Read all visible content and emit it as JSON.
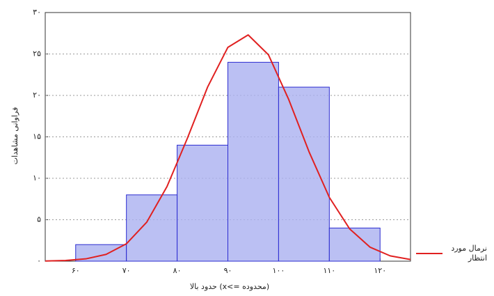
{
  "chart_data": {
    "type": "histogram",
    "x_label": "حدود بالا (x<= محدوده)",
    "y_label": "فراوانی مشاهدات",
    "bins": [
      60,
      70,
      80,
      90,
      100,
      110,
      120
    ],
    "values": [
      2,
      8,
      14,
      24,
      21,
      4
    ],
    "color": "#aab0f0",
    "edge_color": "#2b2bd0",
    "curve": {
      "name": "نرمال مورد انتظار",
      "color": "#e02020",
      "x": [
        54,
        58,
        62,
        66,
        70,
        74,
        78,
        82,
        86,
        90,
        94,
        98,
        102,
        106,
        110,
        114,
        118,
        122,
        126
      ],
      "values": [
        0.02,
        0.08,
        0.28,
        0.82,
        2.1,
        4.7,
        9.0,
        14.8,
        21.0,
        25.8,
        27.3,
        24.9,
        19.5,
        13.2,
        7.7,
        3.9,
        1.7,
        0.64,
        0.2
      ]
    },
    "xlim": [
      54,
      126
    ],
    "ylim": [
      0,
      30
    ],
    "xticks": [
      {
        "value": 60,
        "label": "۶۰"
      },
      {
        "value": 70,
        "label": "۷۰"
      },
      {
        "value": 80,
        "label": "۸۰"
      },
      {
        "value": 90,
        "label": "۹۰"
      },
      {
        "value": 100,
        "label": "۱۰۰"
      },
      {
        "value": 110,
        "label": "۱۱۰"
      },
      {
        "value": 120,
        "label": "۱۲۰"
      }
    ],
    "yticks": [
      {
        "value": 0,
        "label": "۰"
      },
      {
        "value": 5,
        "label": "۵"
      },
      {
        "value": 10,
        "label": "۱۰"
      },
      {
        "value": 15,
        "label": "۱۵"
      },
      {
        "value": 20,
        "label": "۲۰"
      },
      {
        "value": 25,
        "label": "۲۵"
      },
      {
        "value": 30,
        "label": "۳۰"
      }
    ],
    "grid": true,
    "legend": "right"
  }
}
